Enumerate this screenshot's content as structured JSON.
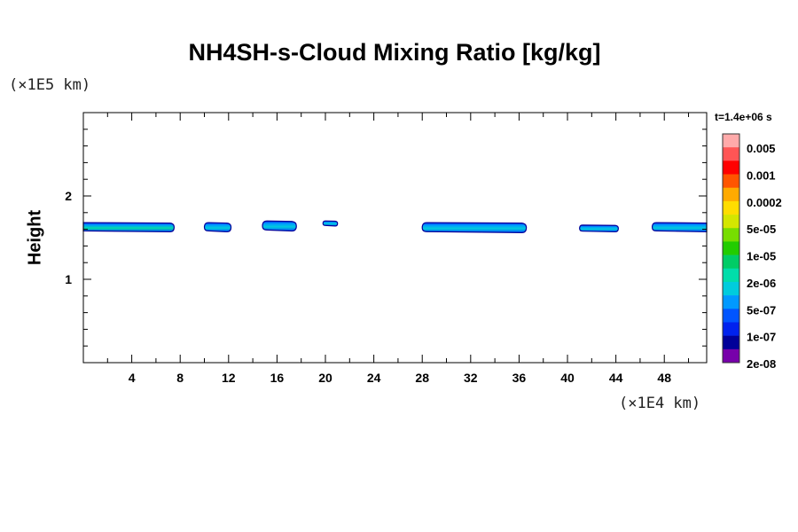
{
  "chart_data": {
    "type": "heatmap",
    "title": "NH4SH-s-Cloud Mixing Ratio [kg/kg]",
    "ylabel": "Height",
    "y_unit": "(×1E5 km)",
    "x_unit": "(×1E4 km)",
    "time_label": "t=1.4e+06 s",
    "xlim": [
      0,
      51.5
    ],
    "ylim": [
      0,
      3
    ],
    "x_ticks": [
      4,
      8,
      12,
      16,
      20,
      24,
      28,
      32,
      36,
      40,
      44,
      48
    ],
    "y_ticks": [
      1,
      2
    ],
    "colorbar": {
      "labels": [
        "0.005",
        "0.001",
        "0.0002",
        "5e-05",
        "1e-05",
        "2e-06",
        "5e-07",
        "1e-07",
        "2e-08"
      ],
      "colors_top_to_bottom": [
        "#ffaaaa",
        "#ff5555",
        "#ff0000",
        "#ff5500",
        "#ffaa00",
        "#ffdd00",
        "#d4e600",
        "#77dd00",
        "#22cc00",
        "#00cc66",
        "#00ddaa",
        "#00ccdd",
        "#0099ff",
        "#0055ff",
        "#0022ee",
        "#000099",
        "#7700aa"
      ]
    },
    "cloud_patches": [
      {
        "x_start": 0.0,
        "x_end": 7.5,
        "y_low": 1.57,
        "y_high": 1.68,
        "peak": "2e-06"
      },
      {
        "x_start": 10.0,
        "x_end": 12.2,
        "y_low": 1.57,
        "y_high": 1.68,
        "peak": "5e-07"
      },
      {
        "x_start": 14.8,
        "x_end": 17.6,
        "y_low": 1.58,
        "y_high": 1.7,
        "peak": "5e-07"
      },
      {
        "x_start": 19.8,
        "x_end": 21.0,
        "y_low": 1.64,
        "y_high": 1.7,
        "peak": "1e-07"
      },
      {
        "x_start": 28.0,
        "x_end": 36.6,
        "y_low": 1.56,
        "y_high": 1.68,
        "peak": "5e-07"
      },
      {
        "x_start": 41.0,
        "x_end": 44.2,
        "y_low": 1.57,
        "y_high": 1.65,
        "peak": "5e-07"
      },
      {
        "x_start": 47.0,
        "x_end": 51.5,
        "y_low": 1.57,
        "y_high": 1.68,
        "peak": "5e-07"
      }
    ]
  }
}
